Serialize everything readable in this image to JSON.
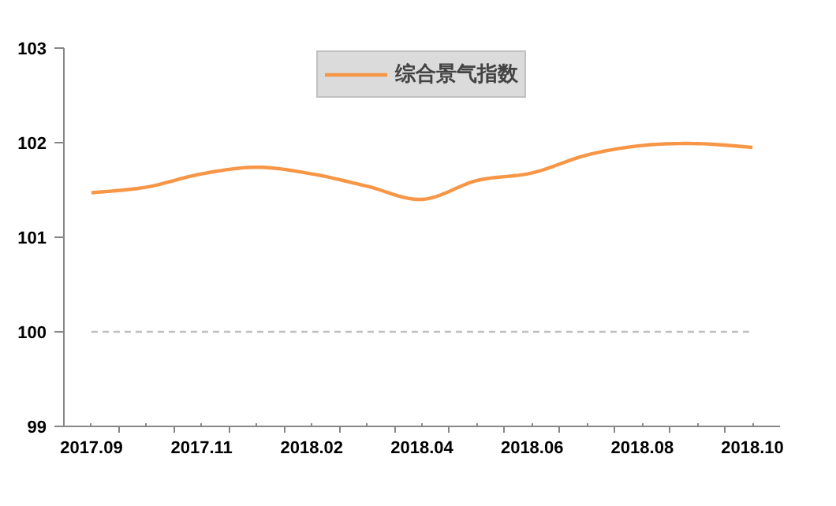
{
  "chart_data": {
    "type": "line",
    "categories": [
      "2017.09",
      null,
      "2017.11",
      null,
      "2018.02",
      null,
      "2018.04",
      null,
      "2018.06",
      null,
      "2018.08",
      null,
      "2018.10"
    ],
    "series": [
      {
        "name": "综合景气指数",
        "color": "#f79646",
        "values": [
          101.47,
          101.53,
          101.67,
          101.74,
          101.67,
          101.54,
          101.4,
          101.6,
          101.68,
          101.87,
          101.97,
          101.99,
          101.95
        ]
      }
    ],
    "ylim": [
      99,
      103
    ],
    "yticks": [
      99,
      100,
      101,
      102,
      103
    ],
    "ref_lines": [
      {
        "axis": "y",
        "value": 100,
        "label": null,
        "color": "#bfbfbf",
        "line_style": "dashed"
      }
    ],
    "grid": false,
    "legend": "top",
    "marker": "none",
    "line_style": "solid"
  }
}
